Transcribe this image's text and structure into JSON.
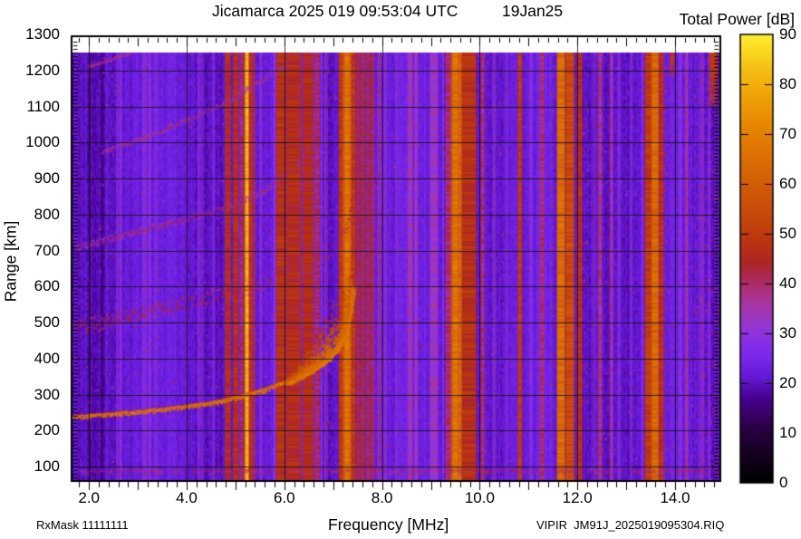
{
  "header": {
    "title": "Jicamarca 2025 019 09:53:04 UTC",
    "date": "19Jan25",
    "colorbar_title": "Total Power [dB]"
  },
  "footer": {
    "rx_mask": "RxMask 11111111",
    "file_label": "VIPIR  JM91J_2025019095304.RIQ"
  },
  "chart_data": {
    "type": "heatmap",
    "title": "Jicamarca 2025 019 09:53:04 UTC  19Jan25",
    "xlabel": "Frequency [MHz]",
    "ylabel": "Range [km]",
    "zlabel": "Total Power [dB]",
    "xlim_mhz": [
      1.64,
      14.93
    ],
    "ylim_km": [
      60,
      1285
    ],
    "data_top_km": 1250,
    "zlim_db": [
      0,
      90
    ],
    "grid": "on",
    "x_minor_tick_mhz": 0.2,
    "y_minor_tick_km": 10,
    "x_ticks": {
      "values": [
        2,
        4,
        6,
        8,
        10,
        12,
        14
      ],
      "labels": [
        "2.0",
        "4.0",
        "6.0",
        "8.0",
        "10.0",
        "12.0",
        "14.0"
      ]
    },
    "y_ticks": {
      "values": [
        100,
        200,
        300,
        400,
        500,
        600,
        700,
        800,
        900,
        1000,
        1100,
        1200,
        1300
      ],
      "labels": [
        "100",
        "200",
        "300",
        "400",
        "500",
        "600",
        "700",
        "800",
        "900",
        "1000",
        "1100",
        "1200",
        "1300"
      ]
    },
    "colorbar_ticks": {
      "values": [
        0,
        10,
        20,
        30,
        40,
        50,
        60,
        70,
        80,
        90
      ],
      "labels": [
        "0",
        "10",
        "20",
        "30",
        "40",
        "50",
        "60",
        "70",
        "80",
        "90"
      ]
    },
    "frame_color": "#000000",
    "grid_color": "#1a1a1a",
    "background_db": 21.5,
    "colormap": [
      [
        0,
        "#000000"
      ],
      [
        6,
        "#150020"
      ],
      [
        12,
        "#30004e"
      ],
      [
        17,
        "#470090"
      ],
      [
        21,
        "#6318d2"
      ],
      [
        25,
        "#7827ea"
      ],
      [
        29,
        "#8a31e4"
      ],
      [
        32,
        "#9836cc"
      ],
      [
        35,
        "#a537ac"
      ],
      [
        38,
        "#ac3184"
      ],
      [
        41,
        "#ad2a58"
      ],
      [
        44,
        "#ac2527"
      ],
      [
        48,
        "#b93310"
      ],
      [
        54,
        "#c74a0b"
      ],
      [
        60,
        "#d25d07"
      ],
      [
        66,
        "#dd7204"
      ],
      [
        72,
        "#e78802"
      ],
      [
        78,
        "#f0a408"
      ],
      [
        83,
        "#f6bf14"
      ],
      [
        90,
        "#ffef30"
      ]
    ],
    "rfi_bands": [
      {
        "f0": 4.79,
        "f1": 4.89,
        "db": 46
      },
      {
        "f0": 4.95,
        "f1": 5.06,
        "db": 46
      },
      {
        "f0": 5.1,
        "f1": 5.15,
        "db": 40
      },
      {
        "f0": 5.17,
        "f1": 5.2,
        "db": 48
      },
      {
        "f0": 5.2,
        "f1": 5.28,
        "db": 80
      },
      {
        "f0": 5.28,
        "f1": 5.33,
        "db": 48
      },
      {
        "f0": 5.34,
        "f1": 5.39,
        "db": 44
      },
      {
        "f0": 5.84,
        "f1": 6.04,
        "db": 47
      },
      {
        "f0": 6.06,
        "f1": 6.32,
        "db": 46
      },
      {
        "f0": 6.36,
        "f1": 6.6,
        "db": 45
      },
      {
        "f0": 6.64,
        "f1": 6.72,
        "db": 41
      },
      {
        "f0": 7.12,
        "f1": 7.2,
        "db": 50
      },
      {
        "f0": 7.2,
        "f1": 7.38,
        "db": 62
      },
      {
        "f0": 7.24,
        "f1": 7.33,
        "db": 66
      },
      {
        "f0": 7.38,
        "f1": 7.46,
        "db": 49
      },
      {
        "f0": 7.49,
        "f1": 7.55,
        "db": 44
      },
      {
        "f0": 7.58,
        "f1": 7.64,
        "db": 44
      },
      {
        "f0": 7.68,
        "f1": 7.74,
        "db": 43
      },
      {
        "f0": 7.77,
        "f1": 7.83,
        "db": 43
      },
      {
        "f0": 7.92,
        "f1": 7.96,
        "db": 38
      },
      {
        "f0": 8.53,
        "f1": 8.62,
        "db": 34
      },
      {
        "f0": 8.66,
        "f1": 8.73,
        "db": 33
      },
      {
        "f0": 8.98,
        "f1": 9.14,
        "db": 33
      },
      {
        "f0": 9.31,
        "f1": 9.4,
        "db": 40
      },
      {
        "f0": 9.42,
        "f1": 9.64,
        "db": 62
      },
      {
        "f0": 9.45,
        "f1": 9.56,
        "db": 66
      },
      {
        "f0": 9.64,
        "f1": 9.92,
        "db": 47
      },
      {
        "f0": 10.03,
        "f1": 10.09,
        "db": 40
      },
      {
        "f0": 10.79,
        "f1": 10.86,
        "db": 50
      },
      {
        "f0": 11.24,
        "f1": 11.31,
        "db": 40
      },
      {
        "f0": 11.59,
        "f1": 11.74,
        "db": 64
      },
      {
        "f0": 11.76,
        "f1": 11.93,
        "db": 54
      },
      {
        "f0": 12.0,
        "f1": 12.09,
        "db": 47
      },
      {
        "f0": 12.43,
        "f1": 12.5,
        "db": 38
      },
      {
        "f0": 12.67,
        "f1": 12.72,
        "db": 36
      },
      {
        "f0": 13.39,
        "f1": 13.52,
        "db": 50
      },
      {
        "f0": 13.52,
        "f1": 13.67,
        "db": 63
      },
      {
        "f0": 13.67,
        "f1": 13.76,
        "db": 47
      },
      {
        "f0": 14.21,
        "f1": 14.26,
        "db": 36
      },
      {
        "f0": 13.9,
        "f1": 13.98,
        "db": 48,
        "km_min": 1185,
        "km_max": 1250
      },
      {
        "f0": 14.71,
        "f1": 14.86,
        "db": 50,
        "km_min": 1100,
        "km_max": 1250
      }
    ],
    "faint_stripes": [
      {
        "f": 2.6,
        "w": 0.08,
        "db": 30
      },
      {
        "f": 3.15,
        "w": 0.1,
        "db": 31
      },
      {
        "f": 3.37,
        "w": 0.07,
        "db": 30
      },
      {
        "f": 4.3,
        "w": 0.08,
        "db": 30
      },
      {
        "f": 4.55,
        "w": 0.06,
        "db": 30
      },
      {
        "f": 5.52,
        "w": 0.07,
        "db": 31
      },
      {
        "f": 6.85,
        "w": 0.08,
        "db": 32
      },
      {
        "f": 8.05,
        "w": 0.1,
        "db": 31
      },
      {
        "f": 8.3,
        "w": 0.07,
        "db": 30
      },
      {
        "f": 10.3,
        "w": 0.08,
        "db": 31
      },
      {
        "f": 10.55,
        "w": 0.07,
        "db": 30
      },
      {
        "f": 11.05,
        "w": 0.08,
        "db": 30
      },
      {
        "f": 12.35,
        "w": 0.07,
        "db": 31
      },
      {
        "f": 12.85,
        "w": 0.08,
        "db": 30
      },
      {
        "f": 13.1,
        "w": 0.06,
        "db": 30
      },
      {
        "f": 14.1,
        "w": 0.07,
        "db": 30
      },
      {
        "f": 14.55,
        "w": 0.09,
        "db": 31
      }
    ],
    "echo_traces": [
      {
        "name": "F-echo-hop-1",
        "db": 70,
        "spread_km": 12,
        "bright": true,
        "points": [
          [
            1.65,
            238
          ],
          [
            2.2,
            244
          ],
          [
            2.8,
            250
          ],
          [
            3.4,
            258
          ],
          [
            4.0,
            268
          ],
          [
            4.6,
            280
          ],
          [
            5.1,
            295
          ],
          [
            5.5,
            311
          ],
          [
            5.9,
            330
          ],
          [
            6.3,
            352
          ],
          [
            6.6,
            374
          ],
          [
            6.9,
            402
          ],
          [
            7.1,
            432
          ],
          [
            7.22,
            465
          ],
          [
            7.3,
            505
          ],
          [
            7.36,
            552
          ],
          [
            7.41,
            600
          ]
        ]
      },
      {
        "name": "F-echo-hop-2",
        "db": 45,
        "spread_km": 45,
        "bright": false,
        "points": [
          [
            1.65,
            485
          ],
          [
            2.6,
            515
          ],
          [
            3.6,
            545
          ],
          [
            4.6,
            577
          ],
          [
            5.2,
            600
          ],
          [
            5.8,
            627
          ],
          [
            6.3,
            652
          ],
          [
            6.7,
            682
          ],
          [
            7.0,
            712
          ],
          [
            7.2,
            748
          ],
          [
            7.3,
            788
          ],
          [
            7.36,
            832
          ]
        ]
      },
      {
        "name": "F-echo-hop-3",
        "db": 41,
        "spread_km": 18,
        "bright": false,
        "points": [
          [
            1.7,
            710
          ],
          [
            2.6,
            742
          ],
          [
            3.6,
            776
          ],
          [
            4.3,
            802
          ],
          [
            4.9,
            828
          ],
          [
            5.4,
            856
          ],
          [
            5.8,
            890
          ],
          [
            6.1,
            930
          ],
          [
            6.4,
            976
          ],
          [
            6.6,
            1022
          ]
        ]
      },
      {
        "name": "F-echo-hop-4",
        "db": 40,
        "spread_km": 14,
        "bright": false,
        "points": [
          [
            2.25,
            975
          ],
          [
            3.2,
            1020
          ],
          [
            4.0,
            1066
          ],
          [
            4.7,
            1106
          ],
          [
            5.1,
            1140
          ],
          [
            5.4,
            1166
          ],
          [
            5.7,
            1192
          ],
          [
            6.0,
            1218
          ],
          [
            6.2,
            1242
          ]
        ]
      },
      {
        "name": "F-echo-hop-5",
        "db": 40,
        "spread_km": 10,
        "bright": false,
        "points": [
          [
            1.95,
            1212
          ],
          [
            2.3,
            1228
          ],
          [
            2.6,
            1242
          ],
          [
            2.85,
            1252
          ]
        ]
      }
    ],
    "spread_cloud": {
      "f0": 6.05,
      "f1": 7.4,
      "km_above_trace": 160,
      "db_max": 68,
      "db_min": 44
    },
    "bottom_band": {
      "km": 90,
      "f0": 1.8,
      "f1": 14.9,
      "db": 40
    }
  }
}
